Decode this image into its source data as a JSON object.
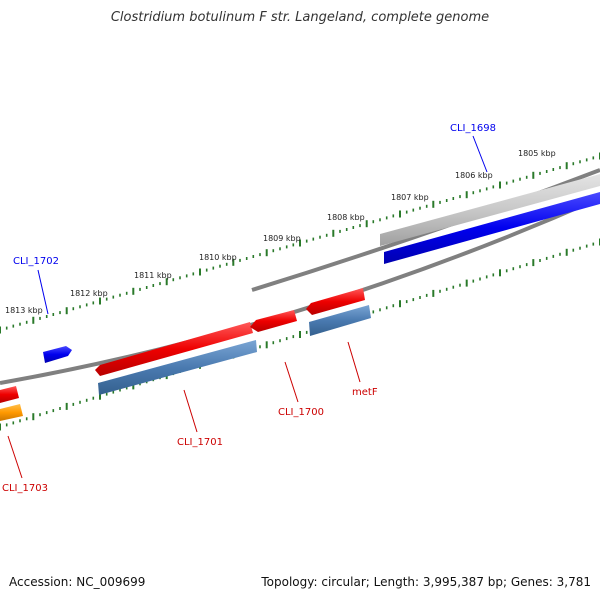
{
  "title": "Clostridium botulinum F str. Langeland, complete genome",
  "footer": {
    "accession": "Accession: NC_009699",
    "summary": "Topology: circular; Length: 3,995,387 bp; Genes: 3,781"
  },
  "colors": {
    "forward_gene": "#0000ee",
    "reverse_gene": "#ee0000",
    "rna_like": "#4a7ab0",
    "pseudo": "#ff9900",
    "ruler_tick": "#2a7a2a",
    "backbone": "#808080"
  },
  "ruler_labels": [
    "1805 kbp",
    "1806 kbp",
    "1807 kbp",
    "1808 kbp",
    "1809 kbp",
    "1810 kbp",
    "1811 kbp",
    "1812 kbp",
    "1813 kbp"
  ],
  "gene_labels": {
    "cli_1698": "CLI_1698",
    "cli_1702": "CLI_1702",
    "cli_1701": "CLI_1701",
    "cli_1700": "CLI_1700",
    "metf": "metF",
    "cli_1703": "CLI_1703"
  }
}
